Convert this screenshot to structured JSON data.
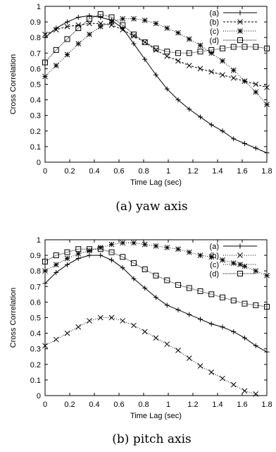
{
  "chart_data": [
    {
      "type": "line",
      "caption": "(a) yaw axis",
      "xlabel": "Time Lag (sec)",
      "ylabel": "Cross Correlation",
      "xlim": [
        0,
        1.8
      ],
      "ylim": [
        0,
        1
      ],
      "xticks": [
        "0",
        "0.2",
        "0.4",
        "0.6",
        "0.8",
        "1",
        "1.2",
        "1.4",
        "1.6",
        "1.8"
      ],
      "yticks": [
        "0",
        "0.1",
        "0.2",
        "0.3",
        "0.4",
        "0.5",
        "0.6",
        "0.7",
        "0.8",
        "0.9",
        "1"
      ],
      "legend_position": "top-right",
      "x": [
        0,
        0.09,
        0.18,
        0.27,
        0.36,
        0.45,
        0.54,
        0.63,
        0.72,
        0.81,
        0.9,
        0.99,
        1.08,
        1.17,
        1.26,
        1.35,
        1.44,
        1.53,
        1.62,
        1.71,
        1.8
      ],
      "series": [
        {
          "name": "(a)",
          "marker": "plus",
          "dash": "",
          "values": [
            0.8,
            0.86,
            0.9,
            0.93,
            0.94,
            0.93,
            0.91,
            0.86,
            0.76,
            0.66,
            0.56,
            0.47,
            0.4,
            0.34,
            0.29,
            0.24,
            0.2,
            0.15,
            0.12,
            0.09,
            0.06
          ]
        },
        {
          "name": "(b)",
          "marker": "x",
          "dash": "3,2",
          "values": [
            0.82,
            0.85,
            0.87,
            0.88,
            0.89,
            0.89,
            0.88,
            0.85,
            0.81,
            0.77,
            0.72,
            0.68,
            0.65,
            0.62,
            0.6,
            0.58,
            0.56,
            0.54,
            0.52,
            0.5,
            0.48
          ]
        },
        {
          "name": "(c)",
          "marker": "star",
          "dash": "1,2",
          "values": [
            0.55,
            0.62,
            0.69,
            0.76,
            0.82,
            0.87,
            0.9,
            0.92,
            0.92,
            0.91,
            0.89,
            0.86,
            0.83,
            0.79,
            0.75,
            0.7,
            0.65,
            0.59,
            0.52,
            0.45,
            0.37
          ]
        },
        {
          "name": "(d)",
          "marker": "square",
          "dash": "1,1",
          "values": [
            0.64,
            0.72,
            0.79,
            0.86,
            0.92,
            0.95,
            0.93,
            0.88,
            0.82,
            0.77,
            0.73,
            0.71,
            0.7,
            0.7,
            0.71,
            0.72,
            0.73,
            0.74,
            0.74,
            0.74,
            0.73
          ]
        }
      ]
    },
    {
      "type": "line",
      "caption": "(b) pitch axis",
      "xlabel": "Time Lag (sec)",
      "ylabel": "Cross Correlation",
      "xlim": [
        0,
        1.8
      ],
      "ylim": [
        0,
        1
      ],
      "xticks": [
        "0",
        "0.2",
        "0.4",
        "0.6",
        "0.8",
        "1",
        "1.2",
        "1.4",
        "1.6",
        "1.8"
      ],
      "yticks": [
        "0",
        "0.1",
        "0.2",
        "0.3",
        "0.4",
        "0.5",
        "0.6",
        "0.7",
        "0.8",
        "0.9",
        "1"
      ],
      "legend_position": "top-right",
      "x": [
        0,
        0.09,
        0.18,
        0.27,
        0.36,
        0.45,
        0.54,
        0.63,
        0.72,
        0.81,
        0.9,
        0.99,
        1.08,
        1.17,
        1.26,
        1.35,
        1.44,
        1.53,
        1.62,
        1.71,
        1.8
      ],
      "series": [
        {
          "name": "(a)",
          "marker": "plus",
          "dash": "",
          "values": [
            0.72,
            0.79,
            0.84,
            0.88,
            0.9,
            0.9,
            0.87,
            0.82,
            0.75,
            0.69,
            0.63,
            0.58,
            0.55,
            0.52,
            0.49,
            0.46,
            0.44,
            0.41,
            0.37,
            0.32,
            0.28
          ]
        },
        {
          "name": "(b)",
          "marker": "x",
          "dash": "1,2",
          "values": [
            0.32,
            0.36,
            0.4,
            0.44,
            0.48,
            0.5,
            0.5,
            0.48,
            0.45,
            0.41,
            0.37,
            0.33,
            0.29,
            0.24,
            0.19,
            0.15,
            0.11,
            0.07,
            0.03,
            0.01,
            -0.02
          ]
        },
        {
          "name": "(c)",
          "marker": "star",
          "dash": "1,2",
          "values": [
            0.8,
            0.84,
            0.88,
            0.91,
            0.93,
            0.95,
            0.97,
            0.98,
            0.98,
            0.97,
            0.96,
            0.95,
            0.94,
            0.92,
            0.9,
            0.89,
            0.87,
            0.85,
            0.83,
            0.8,
            0.77
          ]
        },
        {
          "name": "(d)",
          "marker": "square",
          "dash": "1,1",
          "values": [
            0.86,
            0.9,
            0.92,
            0.94,
            0.94,
            0.94,
            0.92,
            0.89,
            0.85,
            0.81,
            0.77,
            0.74,
            0.71,
            0.69,
            0.67,
            0.65,
            0.63,
            0.61,
            0.59,
            0.58,
            0.57
          ]
        }
      ]
    }
  ]
}
